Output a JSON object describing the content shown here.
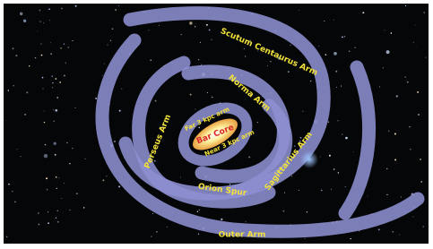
{
  "labels": {
    "scutum": "Scutum Centaurus Arm",
    "norma": "Norma Arm",
    "far": "Far 3 kpc arm",
    "core": "Bar Core",
    "near": "Near 3 kpc arm",
    "perseus": "Perseus Arm",
    "sagittarius": "Sagittarius Arm",
    "orion": "Orion Spur",
    "outer": "Outer Arm"
  }
}
